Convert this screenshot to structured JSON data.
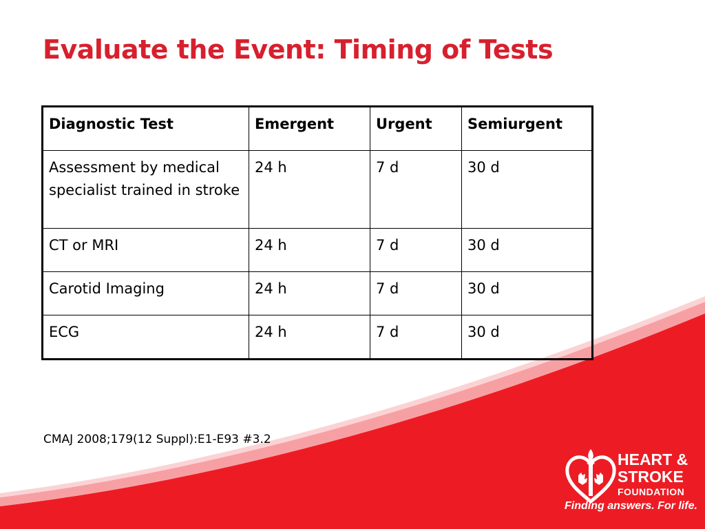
{
  "slide": {
    "title": "Evaluate the Event: Timing of Tests",
    "citation": "CMAJ 2008;179(12 Suppl):E1-E93 #3.2",
    "accent_color": "#d7202e"
  },
  "table": {
    "headers": [
      "Diagnostic Test",
      "Emergent",
      "Urgent",
      "Semiurgent"
    ],
    "rows": [
      [
        "Assessment by medical specialist trained in stroke",
        "24 h",
        "7 d",
        "30 d"
      ],
      [
        "CT or MRI",
        "24 h",
        "7 d",
        "30 d"
      ],
      [
        "Carotid Imaging",
        "24 h",
        "7 d",
        "30 d"
      ],
      [
        "ECG",
        "24 h",
        "7 d",
        "30 d"
      ]
    ]
  },
  "logo": {
    "line1": "HEART &",
    "line2": "STROKE",
    "line3": "FOUNDATION",
    "tagline": "Finding answers. For life.",
    "icon": "heart-torch-maple-leaf-icon"
  }
}
